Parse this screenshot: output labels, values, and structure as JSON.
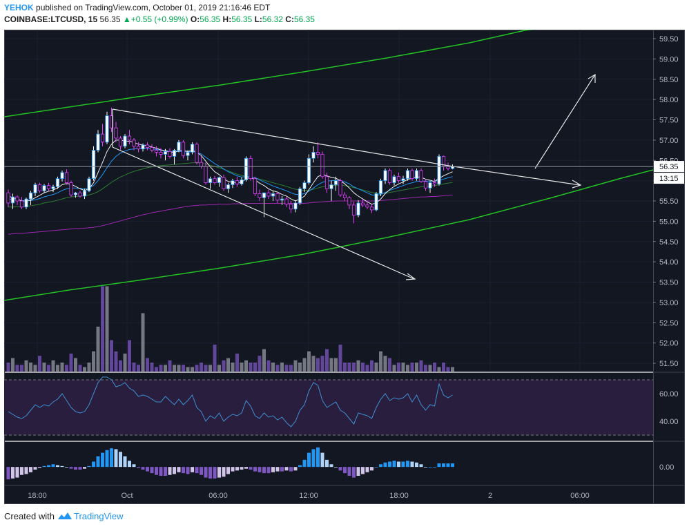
{
  "header": {
    "user": "YEHOK",
    "published_text": "published on TradingView.com, October 01, 2019 21:16:46 EDT",
    "symbol": "COINBASE:LTCUSD, 15",
    "last": "56.35",
    "change": "+0.55 (+0.99%)",
    "o_label": "O:",
    "o_value": "56.35",
    "h_label": "H:",
    "h_value": "56.35",
    "l_label": "L:",
    "l_value": "56.32",
    "c_label": "C:",
    "c_value": "56.35"
  },
  "footer": {
    "created_with": "Created with",
    "brand": "TradingView"
  },
  "colors": {
    "background": "#131722",
    "up": "#ffffff",
    "down": "#e040fb",
    "channel": "#22c322",
    "annotation": "#e6e6e6",
    "ma_fast": "#f0f0f0",
    "ma_mid": "#2196f3",
    "ma_slow": "#2e7d32",
    "ma_long": "#9c27b0",
    "rsi_band": "#2a1e3f",
    "rsi_line": "#3f8fd0",
    "hist_pos_strong": "#2196f3",
    "hist_pos_weak": "#b0d4f8",
    "hist_neg_strong": "#7e57c2",
    "hist_neg_weak": "#d1c4e9"
  },
  "chart_data": {
    "type": "candlestick",
    "price_axis": {
      "ticks": [
        "59.50",
        "59.00",
        "58.50",
        "58.00",
        "57.50",
        "57.00",
        "56.50",
        "56.00",
        "55.50",
        "55.00",
        "54.50",
        "54.00",
        "53.50",
        "53.00",
        "52.50",
        "52.00",
        "51.50"
      ],
      "range": [
        51.3,
        59.7
      ]
    },
    "last_price_label": "56.35",
    "countdown_label": "13:15",
    "time_axis": {
      "ticks": [
        "18:00",
        "Oct",
        "06:00",
        "12:00",
        "18:00",
        "2",
        "06:00"
      ]
    },
    "candles_ohlc": [
      [
        55.7,
        55.78,
        55.35,
        55.45
      ],
      [
        55.45,
        55.68,
        55.3,
        55.6
      ],
      [
        55.6,
        55.64,
        55.4,
        55.5
      ],
      [
        55.5,
        55.6,
        55.3,
        55.35
      ],
      [
        55.35,
        55.58,
        55.3,
        55.55
      ],
      [
        55.55,
        55.75,
        55.4,
        55.7
      ],
      [
        55.7,
        55.95,
        55.62,
        55.9
      ],
      [
        55.9,
        55.95,
        55.7,
        55.75
      ],
      [
        55.75,
        55.92,
        55.7,
        55.88
      ],
      [
        55.88,
        55.95,
        55.75,
        55.8
      ],
      [
        55.8,
        55.9,
        55.72,
        55.85
      ],
      [
        55.85,
        56.1,
        55.8,
        56.05
      ],
      [
        56.05,
        56.25,
        55.98,
        56.2
      ],
      [
        56.2,
        56.28,
        55.9,
        55.95
      ],
      [
        55.95,
        56.0,
        55.6,
        55.65
      ],
      [
        55.65,
        55.72,
        55.58,
        55.7
      ],
      [
        55.7,
        55.75,
        55.58,
        55.62
      ],
      [
        55.62,
        55.8,
        55.55,
        55.75
      ],
      [
        55.75,
        56.1,
        55.72,
        56.05
      ],
      [
        56.05,
        56.85,
        56.0,
        56.75
      ],
      [
        56.75,
        57.25,
        56.7,
        57.15
      ],
      [
        57.15,
        57.4,
        56.85,
        56.95
      ],
      [
        56.95,
        57.7,
        56.9,
        57.6
      ],
      [
        57.6,
        57.8,
        57.2,
        57.3
      ],
      [
        57.3,
        57.45,
        56.95,
        57.05
      ],
      [
        57.05,
        57.1,
        56.75,
        56.85
      ],
      [
        56.85,
        57.15,
        56.8,
        57.1
      ],
      [
        57.1,
        57.25,
        56.9,
        57.0
      ],
      [
        57.0,
        57.05,
        56.75,
        56.85
      ],
      [
        56.85,
        56.95,
        56.7,
        56.78
      ],
      [
        56.78,
        56.92,
        56.72,
        56.88
      ],
      [
        56.88,
        56.95,
        56.75,
        56.82
      ],
      [
        56.82,
        56.9,
        56.7,
        56.75
      ],
      [
        56.75,
        56.85,
        56.6,
        56.7
      ],
      [
        56.7,
        56.8,
        56.55,
        56.65
      ],
      [
        56.65,
        56.78,
        56.5,
        56.72
      ],
      [
        56.72,
        56.8,
        56.55,
        56.6
      ],
      [
        56.6,
        56.78,
        56.4,
        56.75
      ],
      [
        56.75,
        57.0,
        56.7,
        56.95
      ],
      [
        56.95,
        57.0,
        56.55,
        56.62
      ],
      [
        56.62,
        56.75,
        56.5,
        56.7
      ],
      [
        56.7,
        56.95,
        56.65,
        56.9
      ],
      [
        56.9,
        56.95,
        56.4,
        56.45
      ],
      [
        56.45,
        56.6,
        56.3,
        56.35
      ],
      [
        56.35,
        56.45,
        55.9,
        55.95
      ],
      [
        55.95,
        56.1,
        55.8,
        56.05
      ],
      [
        56.05,
        56.12,
        55.9,
        55.95
      ],
      [
        55.95,
        56.1,
        55.85,
        56.08
      ],
      [
        56.08,
        56.15,
        55.75,
        55.8
      ],
      [
        55.8,
        55.95,
        55.7,
        55.9
      ],
      [
        55.9,
        56.05,
        55.82,
        56.0
      ],
      [
        56.0,
        56.1,
        55.85,
        55.92
      ],
      [
        55.92,
        56.08,
        55.88,
        56.02
      ],
      [
        56.02,
        56.6,
        55.98,
        56.55
      ],
      [
        56.55,
        56.62,
        56.0,
        56.05
      ],
      [
        56.05,
        56.1,
        55.62,
        55.68
      ],
      [
        55.68,
        55.78,
        55.5,
        55.58
      ],
      [
        55.58,
        55.62,
        55.1,
        55.7
      ],
      [
        55.7,
        55.78,
        55.55,
        55.62
      ],
      [
        55.62,
        55.75,
        55.5,
        55.68
      ],
      [
        55.68,
        55.72,
        55.45,
        55.52
      ],
      [
        55.52,
        55.62,
        55.4,
        55.55
      ],
      [
        55.55,
        55.6,
        55.35,
        55.42
      ],
      [
        55.42,
        55.5,
        55.2,
        55.3
      ],
      [
        55.3,
        55.52,
        55.22,
        55.45
      ],
      [
        55.45,
        55.85,
        55.4,
        55.8
      ],
      [
        55.8,
        56.0,
        55.72,
        55.95
      ],
      [
        55.95,
        56.65,
        55.9,
        56.55
      ],
      [
        56.55,
        56.85,
        56.45,
        56.7
      ],
      [
        56.7,
        56.95,
        56.55,
        56.65
      ],
      [
        56.65,
        56.72,
        56.05,
        56.1
      ],
      [
        56.1,
        56.2,
        55.7,
        55.8
      ],
      [
        55.8,
        56.0,
        55.5,
        55.9
      ],
      [
        55.9,
        56.1,
        55.75,
        56.0
      ],
      [
        56.0,
        56.05,
        55.6,
        55.65
      ],
      [
        55.65,
        55.72,
        55.5,
        55.58
      ],
      [
        55.58,
        55.62,
        55.3,
        55.4
      ],
      [
        55.4,
        55.48,
        54.95,
        55.15
      ],
      [
        55.15,
        55.52,
        55.1,
        55.45
      ],
      [
        55.45,
        55.55,
        55.35,
        55.4
      ],
      [
        55.4,
        55.5,
        55.3,
        55.35
      ],
      [
        55.35,
        55.42,
        55.2,
        55.28
      ],
      [
        55.28,
        55.72,
        55.25,
        55.68
      ],
      [
        55.68,
        56.05,
        55.62,
        56.0
      ],
      [
        56.0,
        56.3,
        55.92,
        56.25
      ],
      [
        56.25,
        56.3,
        55.9,
        55.95
      ],
      [
        55.95,
        56.15,
        55.88,
        56.1
      ],
      [
        56.1,
        56.2,
        55.95,
        56.0
      ],
      [
        56.0,
        56.12,
        55.92,
        56.05
      ],
      [
        56.05,
        56.3,
        56.0,
        56.25
      ],
      [
        56.25,
        56.3,
        56.0,
        56.05
      ],
      [
        56.05,
        56.3,
        56.0,
        56.25
      ],
      [
        56.25,
        56.3,
        55.95,
        55.98
      ],
      [
        55.98,
        56.02,
        55.75,
        55.82
      ],
      [
        55.82,
        55.98,
        55.7,
        55.95
      ],
      [
        55.95,
        56.05,
        55.85,
        55.92
      ],
      [
        55.92,
        56.65,
        55.88,
        56.6
      ],
      [
        56.6,
        56.62,
        56.25,
        56.35
      ],
      [
        56.35,
        56.45,
        56.25,
        56.3
      ],
      [
        56.3,
        56.4,
        56.28,
        56.35
      ]
    ],
    "ma_fast": [
      55.62,
      55.58,
      55.55,
      55.5,
      55.5,
      55.52,
      55.58,
      55.64,
      55.7,
      55.74,
      55.77,
      55.82,
      55.9,
      55.93,
      55.91,
      55.86,
      55.8,
      55.76,
      55.8,
      55.95,
      56.2,
      56.45,
      56.72,
      56.9,
      57.0,
      57.0,
      56.98,
      56.97,
      56.94,
      56.9,
      56.88,
      56.86,
      56.83,
      56.8,
      56.76,
      56.74,
      56.7,
      56.7,
      56.74,
      56.74,
      56.72,
      56.75,
      56.7,
      56.62,
      56.48,
      56.34,
      56.22,
      56.15,
      56.05,
      55.98,
      55.96,
      55.95,
      55.96,
      56.05,
      56.08,
      56.02,
      55.94,
      55.88,
      55.8,
      55.75,
      55.72,
      55.66,
      55.62,
      55.55,
      55.5,
      55.55,
      55.62,
      55.78,
      55.95,
      56.1,
      56.15,
      56.12,
      56.08,
      56.06,
      56.0,
      55.92,
      55.82,
      55.7,
      55.62,
      55.55,
      55.48,
      55.42,
      55.45,
      55.55,
      55.68,
      55.78,
      55.86,
      55.92,
      55.97,
      56.03,
      56.06,
      56.1,
      56.08,
      56.04,
      56.01,
      55.98,
      56.06,
      56.12,
      56.17,
      56.22
    ],
    "ma_mid": [
      55.55,
      55.54,
      55.53,
      55.51,
      55.5,
      55.51,
      55.53,
      55.56,
      55.6,
      55.63,
      55.66,
      55.7,
      55.76,
      55.8,
      55.82,
      55.82,
      55.81,
      55.8,
      55.82,
      55.88,
      56.0,
      56.15,
      56.32,
      56.48,
      56.6,
      56.68,
      56.73,
      56.77,
      56.78,
      56.79,
      56.79,
      56.79,
      56.78,
      56.77,
      56.75,
      56.74,
      56.72,
      56.71,
      56.72,
      56.72,
      56.71,
      56.72,
      56.7,
      56.66,
      56.58,
      56.5,
      56.42,
      56.36,
      56.29,
      56.22,
      56.17,
      56.12,
      56.09,
      56.1,
      56.1,
      56.07,
      56.02,
      55.97,
      55.92,
      55.87,
      55.83,
      55.79,
      55.75,
      55.7,
      55.66,
      55.66,
      55.68,
      55.74,
      55.82,
      55.9,
      55.96,
      55.99,
      56.0,
      56.01,
      56.0,
      55.97,
      55.92,
      55.85,
      55.8,
      55.75,
      55.7,
      55.65,
      55.64,
      55.66,
      55.71,
      55.76,
      55.8,
      55.84,
      55.88,
      55.92,
      55.95,
      55.98,
      55.99,
      55.99,
      55.99,
      55.98,
      56.01,
      56.04,
      56.07,
      56.1
    ],
    "ma_slow": [
      55.35,
      55.35,
      55.36,
      55.36,
      55.37,
      55.38,
      55.4,
      55.42,
      55.45,
      55.47,
      55.49,
      55.52,
      55.55,
      55.58,
      55.6,
      55.61,
      55.62,
      55.63,
      55.65,
      55.68,
      55.73,
      55.8,
      55.88,
      55.96,
      56.03,
      56.09,
      56.14,
      56.19,
      56.23,
      56.26,
      56.29,
      56.32,
      56.34,
      56.36,
      56.37,
      56.38,
      56.39,
      56.4,
      56.41,
      56.42,
      56.43,
      56.44,
      56.44,
      56.43,
      56.41,
      56.38,
      56.35,
      56.32,
      56.28,
      56.24,
      56.2,
      56.16,
      56.13,
      56.11,
      56.09,
      56.07,
      56.04,
      56.01,
      55.98,
      55.95,
      55.92,
      55.89,
      55.86,
      55.82,
      55.79,
      55.77,
      55.76,
      55.77,
      55.79,
      55.82,
      55.85,
      55.87,
      55.88,
      55.89,
      55.89,
      55.88,
      55.86,
      55.83,
      55.8,
      55.77,
      55.74,
      55.71,
      55.69,
      55.68,
      55.69,
      55.71,
      55.73,
      55.75,
      55.77,
      55.79,
      55.81,
      55.83,
      55.85,
      55.86,
      55.87,
      55.88,
      55.9,
      55.92,
      55.94,
      55.96
    ],
    "ma_long": [
      54.68,
      54.69,
      54.7,
      54.7,
      54.71,
      54.72,
      54.73,
      54.74,
      54.75,
      54.76,
      54.77,
      54.78,
      54.79,
      54.8,
      54.81,
      54.82,
      54.82,
      54.83,
      54.84,
      54.85,
      54.87,
      54.89,
      54.92,
      54.95,
      54.98,
      55.01,
      55.04,
      55.07,
      55.1,
      55.13,
      55.16,
      55.18,
      55.21,
      55.23,
      55.25,
      55.27,
      55.29,
      55.31,
      55.33,
      55.35,
      55.37,
      55.38,
      55.39,
      55.4,
      55.4,
      55.41,
      55.41,
      55.42,
      55.42,
      55.42,
      55.43,
      55.43,
      55.43,
      55.44,
      55.44,
      55.44,
      55.44,
      55.44,
      55.44,
      55.44,
      55.44,
      55.44,
      55.44,
      55.44,
      55.44,
      55.44,
      55.44,
      55.45,
      55.46,
      55.47,
      55.48,
      55.49,
      55.49,
      55.5,
      55.5,
      55.5,
      55.5,
      55.5,
      55.5,
      55.5,
      55.5,
      55.5,
      55.5,
      55.51,
      55.52,
      55.53,
      55.54,
      55.55,
      55.56,
      55.57,
      55.58,
      55.59,
      55.6,
      55.6,
      55.61,
      55.61,
      55.62,
      55.63,
      55.64,
      55.65
    ],
    "volume": [
      4,
      6,
      3,
      3,
      5,
      4,
      3,
      7,
      4,
      3,
      5,
      3,
      4,
      3,
      8,
      6,
      3,
      2,
      4,
      9,
      20,
      38,
      38,
      14,
      9,
      5,
      8,
      14,
      4,
      3,
      26,
      6,
      4,
      2,
      3,
      3,
      5,
      3,
      3,
      3,
      2,
      2,
      3,
      4,
      3,
      3,
      12,
      3,
      5,
      6,
      4,
      8,
      4,
      5,
      4,
      4,
      7,
      10,
      5,
      4,
      3,
      4,
      3,
      3,
      5,
      4,
      6,
      9,
      7,
      6,
      7,
      10,
      6,
      6,
      12,
      4,
      4,
      4,
      5,
      4,
      3,
      5,
      4,
      9,
      7,
      6,
      3,
      4,
      4,
      3,
      4,
      4,
      5,
      3,
      3,
      4,
      2,
      4,
      2,
      2
    ],
    "volume_axis_max": 40,
    "rsi": {
      "ticks": [
        "60.00",
        "40.00"
      ],
      "upper_band": 70,
      "lower_band": 30,
      "range": [
        28,
        73
      ],
      "values": [
        47,
        45,
        43,
        42,
        44,
        48,
        52,
        50,
        52,
        51,
        54,
        56,
        60,
        55,
        50,
        47,
        46,
        47,
        52,
        60,
        68,
        72,
        72,
        70,
        65,
        66,
        68,
        64,
        62,
        58,
        59,
        58,
        56,
        54,
        54,
        58,
        55,
        52,
        56,
        52,
        55,
        59,
        50,
        47,
        40,
        44,
        42,
        46,
        40,
        43,
        45,
        44,
        46,
        55,
        51,
        44,
        42,
        46,
        43,
        44,
        41,
        43,
        39,
        36,
        40,
        48,
        52,
        62,
        68,
        66,
        55,
        50,
        52,
        54,
        48,
        46,
        42,
        38,
        46,
        45,
        44,
        42,
        50,
        56,
        60,
        55,
        57,
        56,
        57,
        60,
        54,
        59,
        52,
        48,
        52,
        51,
        67,
        59,
        57,
        59
      ]
    },
    "macd_histogram": {
      "ticks": [
        "0.00"
      ],
      "range": [
        -0.17,
        0.25
      ],
      "values": [
        -0.14,
        -0.13,
        -0.12,
        -0.09,
        -0.08,
        -0.06,
        -0.03,
        -0.01,
        0.01,
        0.02,
        0.03,
        0.02,
        0.01,
        0.0,
        -0.02,
        -0.03,
        -0.03,
        -0.02,
        0.01,
        0.06,
        0.12,
        0.16,
        0.19,
        0.21,
        0.2,
        0.17,
        0.12,
        0.07,
        0.03,
        -0.01,
        -0.03,
        -0.05,
        -0.07,
        -0.09,
        -0.1,
        -0.1,
        -0.09,
        -0.08,
        -0.06,
        -0.07,
        -0.08,
        -0.06,
        -0.07,
        -0.09,
        -0.12,
        -0.13,
        -0.13,
        -0.12,
        -0.11,
        -0.08,
        -0.05,
        -0.04,
        -0.03,
        -0.02,
        -0.03,
        -0.05,
        -0.06,
        -0.07,
        -0.07,
        -0.06,
        -0.05,
        -0.05,
        -0.04,
        -0.05,
        -0.04,
        0.02,
        0.08,
        0.16,
        0.2,
        0.22,
        0.16,
        0.08,
        0.03,
        0.0,
        -0.04,
        -0.07,
        -0.1,
        -0.12,
        -0.1,
        -0.08,
        -0.06,
        -0.04,
        0.0,
        0.03,
        0.05,
        0.06,
        0.07,
        0.06,
        0.06,
        0.07,
        0.06,
        0.05,
        0.03,
        0.0,
        0.0,
        0.0,
        0.04,
        0.04,
        0.04,
        0.04
      ]
    }
  }
}
